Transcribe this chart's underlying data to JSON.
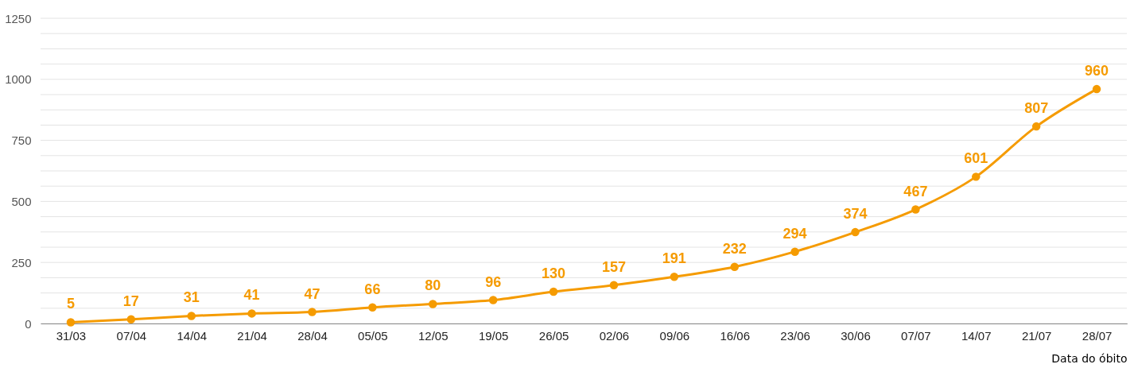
{
  "chart_data": {
    "type": "line",
    "xlabel": "Data do óbito",
    "categories": [
      "31/03",
      "07/04",
      "14/04",
      "21/04",
      "28/04",
      "05/05",
      "12/05",
      "19/05",
      "26/05",
      "02/06",
      "09/06",
      "16/06",
      "23/06",
      "30/06",
      "07/07",
      "14/07",
      "21/07",
      "28/07"
    ],
    "series": [
      {
        "color": "#f59b00",
        "values": [
          5,
          17,
          31,
          41,
          47,
          66,
          80,
          96,
          130,
          157,
          191,
          232,
          294,
          374,
          467,
          601,
          807,
          960
        ]
      }
    ],
    "ylim": [
      0,
      1250
    ],
    "yticks": [
      0,
      {
        "value": 62.5,
        "label": null
      },
      {
        "value": 125,
        "label": null
      },
      {
        "value": 187.5,
        "label": null
      },
      250,
      {
        "value": 312.5,
        "label": null
      },
      {
        "value": 375,
        "label": null
      },
      {
        "value": 437.5,
        "label": null
      },
      500,
      {
        "value": 562.5,
        "label": null
      },
      {
        "value": 625,
        "label": null
      },
      {
        "value": 687.5,
        "label": null
      },
      750,
      {
        "value": 812.5,
        "label": null
      },
      {
        "value": 875,
        "label": null
      },
      {
        "value": 937.5,
        "label": null
      },
      1000,
      {
        "value": 1062.5,
        "label": null
      },
      {
        "value": 1125,
        "label": null
      },
      {
        "value": 1187.5,
        "label": null
      },
      1250
    ],
    "grid": "y",
    "marker": "circle",
    "line_style": "solid",
    "data_labels": true
  }
}
